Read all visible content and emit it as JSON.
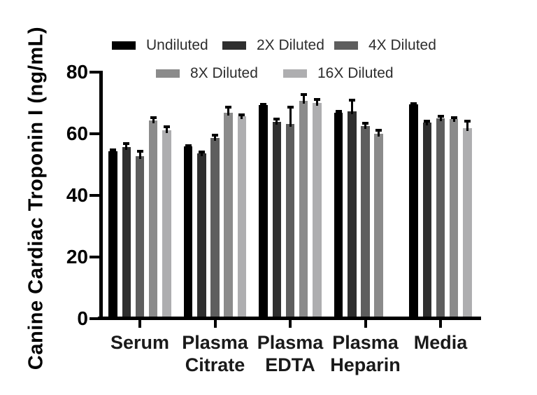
{
  "chart_data": {
    "type": "bar",
    "title": "",
    "ylabel": "Canine Cardiac Troponin I (ng/mL)",
    "xlabel": "",
    "ylim": [
      0,
      80
    ],
    "yticks": [
      0,
      20,
      40,
      60,
      80
    ],
    "grid": false,
    "legend_position": "top",
    "error_bar_color": "#000000",
    "axis_color": "#000000",
    "background_color": "#ffffff",
    "categories": [
      "Serum",
      "Plasma Citrate",
      "Plasma EDTA",
      "Plasma Heparin",
      "Media"
    ],
    "category_lines": [
      [
        "Serum"
      ],
      [
        "Plasma",
        "Citrate"
      ],
      [
        "Plasma",
        "EDTA"
      ],
      [
        "Plasma",
        "Heparin"
      ],
      [
        "Media"
      ]
    ],
    "series": [
      {
        "name": "Undiluted",
        "color": "#000000",
        "values": [
          54.4,
          55.8,
          69.3,
          66.8,
          69.5
        ],
        "errors": [
          0.9,
          0.7,
          0.8,
          1.0,
          0.8
        ]
      },
      {
        "name": "2X Diluted",
        "color": "#2f2f2f",
        "values": [
          55.7,
          53.7,
          63.9,
          67.3,
          63.7
        ],
        "errors": [
          1.5,
          0.8,
          1.3,
          4.0,
          0.9
        ]
      },
      {
        "name": "4X Diluted",
        "color": "#5e5e5e",
        "values": [
          52.8,
          58.7,
          63.2,
          62.5,
          65.0
        ],
        "errors": [
          2.0,
          1.2,
          5.8,
          1.4,
          1.2
        ]
      },
      {
        "name": "8X Diluted",
        "color": "#8b8b8b",
        "values": [
          64.3,
          66.9,
          70.6,
          60.0,
          64.8
        ],
        "errors": [
          1.3,
          2.1,
          2.6,
          1.5,
          0.9
        ]
      },
      {
        "name": "16X Diluted",
        "color": "#aeaeb0",
        "values": [
          61.2,
          65.6,
          69.9,
          null,
          61.9
        ],
        "errors": [
          1.5,
          0.9,
          1.8,
          null,
          2.7
        ]
      }
    ]
  }
}
